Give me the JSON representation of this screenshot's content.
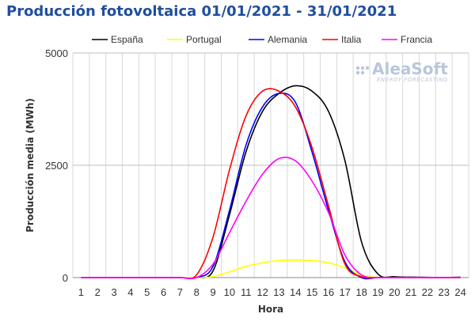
{
  "chart_data": {
    "type": "line",
    "title": "Producción fotovoltaica 01/01/2021 - 31/01/2021",
    "xlabel": "Hora",
    "ylabel": "Producción media (MWh)",
    "xlim": [
      1,
      24
    ],
    "ylim": [
      0,
      5000
    ],
    "y_ticks": [
      0,
      2500,
      5000
    ],
    "y_tick_labels": [
      "0",
      "2500",
      "5000"
    ],
    "x_ticks": [
      1,
      2,
      3,
      4,
      5,
      6,
      7,
      8,
      9,
      10,
      11,
      12,
      13,
      14,
      15,
      16,
      17,
      18,
      19,
      20,
      21,
      22,
      23,
      24
    ],
    "x_tick_labels": [
      "1",
      "2",
      "3",
      "4",
      "5",
      "6",
      "7",
      "8",
      "9",
      "10",
      "11",
      "12",
      "13",
      "14",
      "15",
      "16",
      "17",
      "18",
      "19",
      "20",
      "21",
      "22",
      "23",
      "24"
    ],
    "grid": "vertical-and-horizontal",
    "legend_position": "top",
    "x": [
      1,
      2,
      3,
      4,
      5,
      6,
      7,
      8,
      9,
      10,
      11,
      12,
      13,
      14,
      15,
      16,
      17,
      18,
      19,
      20,
      21,
      22,
      23,
      24
    ],
    "series": [
      {
        "name": "España",
        "color": "#000000",
        "values": [
          0,
          0,
          0,
          0,
          0,
          0,
          0,
          0,
          150,
          1400,
          2800,
          3700,
          4100,
          4270,
          4150,
          3700,
          2600,
          800,
          80,
          20,
          10,
          5,
          0,
          10
        ]
      },
      {
        "name": "Portugal",
        "color": "#ffff00",
        "values": [
          0,
          0,
          0,
          0,
          0,
          0,
          0,
          0,
          20,
          130,
          250,
          330,
          380,
          390,
          380,
          330,
          220,
          60,
          5,
          0,
          0,
          0,
          0,
          0
        ]
      },
      {
        "name": "Alemania",
        "color": "#0000ff",
        "values": [
          0,
          0,
          0,
          0,
          0,
          0,
          0,
          0,
          250,
          1500,
          2950,
          3800,
          4100,
          3900,
          2800,
          1500,
          350,
          0,
          0,
          0,
          0,
          0,
          0,
          0
        ]
      },
      {
        "name": "Italia",
        "color": "#ff0000",
        "values": [
          0,
          0,
          0,
          0,
          0,
          0,
          0,
          60,
          900,
          2400,
          3600,
          4150,
          4150,
          3800,
          2900,
          1600,
          300,
          20,
          0,
          0,
          0,
          0,
          0,
          0
        ]
      },
      {
        "name": "Francia",
        "color": "#ff00ff",
        "values": [
          0,
          0,
          0,
          0,
          0,
          0,
          0,
          0,
          300,
          1000,
          1700,
          2300,
          2650,
          2600,
          2150,
          1450,
          500,
          60,
          0,
          0,
          0,
          0,
          0,
          0
        ]
      }
    ]
  },
  "logo": {
    "main": "AleaSoft",
    "sub": "ENERGY FORECASTING"
  }
}
